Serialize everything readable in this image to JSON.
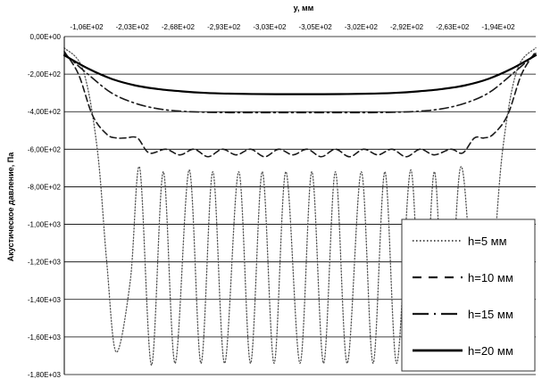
{
  "chart_data": {
    "type": "line",
    "xlabel": "y, мм",
    "ylabel": "Акустическое давление, Па",
    "x_tick_labels": [
      "-1,06E+02",
      "-2,03E+02",
      "-2,68E+02",
      "-2,93E+02",
      "-3,03E+02",
      "-3,05E+02",
      "-3,02E+02",
      "-2,92E+02",
      "-2,63E+02",
      "-1,94E+02"
    ],
    "y_tick_labels": [
      "0,00E+00",
      "-2,00E+02",
      "-4,00E+02",
      "-6,00E+02",
      "-8,00E+02",
      "-1,00E+03",
      "-1,20E+03",
      "-1,40E+03",
      "-1,60E+03",
      "-1,80E+03"
    ],
    "ylim": [
      -1800,
      0
    ],
    "grid": "horizontal",
    "legend_position": "bottom-right",
    "series": [
      {
        "name": "h=5 мм",
        "style": "dotted",
        "color": "#555555",
        "x": [
          0.0,
          0.04,
          0.07,
          0.09,
          0.11,
          0.14,
          0.16,
          0.185,
          0.21,
          0.235,
          0.265,
          0.29,
          0.315,
          0.34,
          0.37,
          0.395,
          0.42,
          0.445,
          0.47,
          0.5,
          0.525,
          0.55,
          0.575,
          0.6,
          0.63,
          0.655,
          0.68,
          0.705,
          0.735,
          0.76,
          0.785,
          0.81,
          0.84,
          0.865,
          0.89,
          0.91,
          0.93,
          0.96,
          1.0
        ],
        "y": [
          -60,
          -180,
          -600,
          -1200,
          -1680,
          -1300,
          -700,
          -1750,
          -720,
          -1740,
          -710,
          -1740,
          -720,
          -1740,
          -720,
          -1740,
          -720,
          -1740,
          -720,
          -1740,
          -720,
          -1740,
          -720,
          -1740,
          -720,
          -1740,
          -720,
          -1740,
          -710,
          -1740,
          -720,
          -1750,
          -700,
          -1300,
          -1680,
          -1200,
          -600,
          -180,
          -60
        ]
      },
      {
        "name": "h=10 мм",
        "style": "dashed",
        "color": "#1a1a1a",
        "x": [
          0.0,
          0.03,
          0.06,
          0.09,
          0.11,
          0.13,
          0.155,
          0.18,
          0.215,
          0.245,
          0.275,
          0.305,
          0.335,
          0.365,
          0.395,
          0.425,
          0.455,
          0.485,
          0.515,
          0.545,
          0.575,
          0.605,
          0.635,
          0.665,
          0.695,
          0.725,
          0.755,
          0.785,
          0.82,
          0.845,
          0.87,
          0.89,
          0.91,
          0.94,
          0.97,
          1.0
        ],
        "y": [
          -80,
          -200,
          -420,
          -520,
          -540,
          -540,
          -540,
          -620,
          -600,
          -630,
          -600,
          -640,
          -600,
          -630,
          -600,
          -640,
          -600,
          -630,
          -600,
          -640,
          -600,
          -640,
          -600,
          -630,
          -600,
          -640,
          -600,
          -630,
          -600,
          -620,
          -540,
          -540,
          -520,
          -420,
          -200,
          -80
        ]
      },
      {
        "name": "h=15 мм",
        "style": "dashdot",
        "color": "#1a1a1a",
        "x": [
          0.0,
          0.05,
          0.1,
          0.15,
          0.2,
          0.25,
          0.3,
          0.35,
          0.4,
          0.45,
          0.5,
          0.55,
          0.6,
          0.65,
          0.7,
          0.75,
          0.8,
          0.85,
          0.9,
          0.95,
          1.0
        ],
        "y": [
          -90,
          -200,
          -300,
          -355,
          -385,
          -398,
          -403,
          -405,
          -405,
          -405,
          -405,
          -405,
          -405,
          -405,
          -403,
          -398,
          -385,
          -355,
          -300,
          -200,
          -90
        ]
      },
      {
        "name": "h=20 мм",
        "style": "solid",
        "color": "#000000",
        "x": [
          0.0,
          0.05,
          0.1,
          0.15,
          0.2,
          0.25,
          0.3,
          0.35,
          0.4,
          0.45,
          0.5,
          0.55,
          0.6,
          0.65,
          0.7,
          0.75,
          0.8,
          0.85,
          0.9,
          0.95,
          1.0
        ],
        "y": [
          -100,
          -170,
          -225,
          -260,
          -280,
          -292,
          -300,
          -304,
          -306,
          -307,
          -307,
          -307,
          -306,
          -304,
          -300,
          -292,
          -280,
          -260,
          -225,
          -170,
          -100
        ]
      }
    ]
  }
}
